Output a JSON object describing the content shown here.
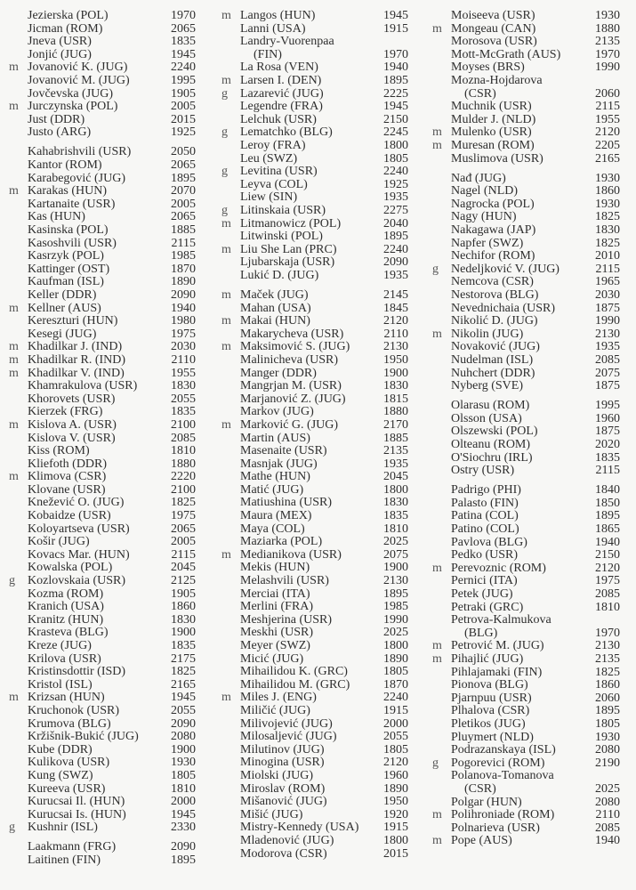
{
  "columns": [
    [
      [
        {
          "t": "",
          "n": "Jezierska (POL)",
          "r": "1970"
        },
        {
          "t": "",
          "n": "Jicman (ROM)",
          "r": "2065"
        },
        {
          "t": "",
          "n": "Jneva (USR)",
          "r": "1835"
        },
        {
          "t": "",
          "n": "Jonjić (JUG)",
          "r": "1945"
        },
        {
          "t": "m",
          "n": "Jovanović K. (JUG)",
          "r": "2240"
        },
        {
          "t": "",
          "n": "Jovanović M. (JUG)",
          "r": "1995"
        },
        {
          "t": "",
          "n": "Jovčevska (JUG)",
          "r": "1905"
        },
        {
          "t": "m",
          "n": "Jurczynska (POL)",
          "r": "2005"
        },
        {
          "t": "",
          "n": "Just (DDR)",
          "r": "2015"
        },
        {
          "t": "",
          "n": "Justo (ARG)",
          "r": "1925"
        }
      ],
      [
        {
          "t": "",
          "n": "Kahabrishvili (USR)",
          "r": "2050"
        },
        {
          "t": "",
          "n": "Kantor (ROM)",
          "r": "2065"
        },
        {
          "t": "",
          "n": "Karabegović (JUG)",
          "r": "1895"
        },
        {
          "t": "m",
          "n": "Karakas (HUN)",
          "r": "2070"
        },
        {
          "t": "",
          "n": "Kartanaite (USR)",
          "r": "2005"
        },
        {
          "t": "",
          "n": "Kas (HUN)",
          "r": "2065"
        },
        {
          "t": "",
          "n": "Kasinska (POL)",
          "r": "1885"
        },
        {
          "t": "",
          "n": "Kasoshvili (USR)",
          "r": "2115"
        },
        {
          "t": "",
          "n": "Kasrzyk (POL)",
          "r": "1985"
        },
        {
          "t": "",
          "n": "Kattinger (OST)",
          "r": "1870"
        },
        {
          "t": "",
          "n": "Kaufman (ISL)",
          "r": "1890"
        },
        {
          "t": "",
          "n": "Keller (DDR)",
          "r": "2090"
        },
        {
          "t": "m",
          "n": "Kellner (AUS)",
          "r": "1940"
        },
        {
          "t": "",
          "n": "Kereszturi (HUN)",
          "r": "1980"
        },
        {
          "t": "",
          "n": "Kesegi (JUG)",
          "r": "1975"
        },
        {
          "t": "m",
          "n": "Khadilkar J. (IND)",
          "r": "2030"
        },
        {
          "t": "m",
          "n": "Khadilkar R. (IND)",
          "r": "2110"
        },
        {
          "t": "m",
          "n": "Khadilkar V. (IND)",
          "r": "1955"
        },
        {
          "t": "",
          "n": "Khamrakulova (USR)",
          "r": "1830"
        },
        {
          "t": "",
          "n": "Khorovets (USR)",
          "r": "2055"
        },
        {
          "t": "",
          "n": "Kierzek (FRG)",
          "r": "1835"
        },
        {
          "t": "m",
          "n": "Kislova A. (USR)",
          "r": "2100"
        },
        {
          "t": "",
          "n": "Kislova V. (USR)",
          "r": "2085"
        },
        {
          "t": "",
          "n": "Kiss (ROM)",
          "r": "1810"
        },
        {
          "t": "",
          "n": "Kliefoth (DDR)",
          "r": "1880"
        },
        {
          "t": "m",
          "n": "Klimova (CSR)",
          "r": "2220"
        },
        {
          "t": "",
          "n": "Klovane (USR)",
          "r": "2100"
        },
        {
          "t": "",
          "n": "Knežević O. (JUG)",
          "r": "1825"
        },
        {
          "t": "",
          "n": "Kobaidze (USR)",
          "r": "1975"
        },
        {
          "t": "",
          "n": "Koloyartseva (USR)",
          "r": "2065"
        },
        {
          "t": "",
          "n": "Košir (JUG)",
          "r": "2005"
        },
        {
          "t": "",
          "n": "Kovacs Mar. (HUN)",
          "r": "2115"
        },
        {
          "t": "",
          "n": "Kowalska (POL)",
          "r": "2045"
        },
        {
          "t": "g",
          "n": "Kozlovskaia (USR)",
          "r": "2125"
        },
        {
          "t": "",
          "n": "Kozma (ROM)",
          "r": "1905"
        },
        {
          "t": "",
          "n": "Kranich (USA)",
          "r": "1860"
        },
        {
          "t": "",
          "n": "Kranitz (HUN)",
          "r": "1830"
        },
        {
          "t": "",
          "n": "Krasteva (BLG)",
          "r": "1900"
        },
        {
          "t": "",
          "n": "Kreze (JUG)",
          "r": "1835"
        },
        {
          "t": "",
          "n": "Krilova (USR)",
          "r": "2175"
        },
        {
          "t": "",
          "n": "Kristinsdottir (ISD)",
          "r": "1825"
        },
        {
          "t": "",
          "n": "Kristol (ISL)",
          "r": "2165"
        },
        {
          "t": "m",
          "n": "Krizsan (HUN)",
          "r": "1945"
        },
        {
          "t": "",
          "n": "Kruchonok (USR)",
          "r": "2055"
        },
        {
          "t": "",
          "n": "Krumova (BLG)",
          "r": "2090"
        },
        {
          "t": "",
          "n": "Kržišnik-Bukić (JUG)",
          "r": "2080"
        },
        {
          "t": "",
          "n": "Kube (DDR)",
          "r": "1900"
        },
        {
          "t": "",
          "n": "Kulikova (USR)",
          "r": "1930"
        },
        {
          "t": "",
          "n": "Kung (SWZ)",
          "r": "1805"
        },
        {
          "t": "",
          "n": "Kureeva (USR)",
          "r": "1810"
        },
        {
          "t": "",
          "n": "Kurucsai Il. (HUN)",
          "r": "2000"
        },
        {
          "t": "",
          "n": "Kurucsai Is. (HUN)",
          "r": "1945"
        },
        {
          "t": "g",
          "n": "Kushnir (ISL)",
          "r": "2330"
        }
      ],
      [
        {
          "t": "",
          "n": "Laakmann (FRG)",
          "r": "2090"
        },
        {
          "t": "",
          "n": "Laitinen (FIN)",
          "r": "1895"
        }
      ]
    ],
    [
      [
        {
          "t": "m",
          "n": "Langos (HUN)",
          "r": "1945"
        },
        {
          "t": "",
          "n": "Lanni (USA)",
          "r": "1915"
        },
        {
          "t": "",
          "n": "Landry-Vuorenpaa",
          "c": "(FIN)",
          "r": "1970"
        },
        {
          "t": "",
          "n": "La Rosa (VEN)",
          "r": "1940"
        },
        {
          "t": "m",
          "n": "Larsen I. (DEN)",
          "r": "1895"
        },
        {
          "t": "g",
          "n": "Lazarević (JUG)",
          "r": "2225"
        },
        {
          "t": "",
          "n": "Legendre (FRA)",
          "r": "1945"
        },
        {
          "t": "",
          "n": "Lelchuk (USR)",
          "r": "2150"
        },
        {
          "t": "g",
          "n": "Lematchko (BLG)",
          "r": "2245"
        },
        {
          "t": "",
          "n": "Leroy (FRA)",
          "r": "1800"
        },
        {
          "t": "",
          "n": "Leu (SWZ)",
          "r": "1805"
        },
        {
          "t": "g",
          "n": "Levitina (USR)",
          "r": "2240"
        },
        {
          "t": "",
          "n": "Leyva (COL)",
          "r": "1925"
        },
        {
          "t": "",
          "n": "Liew (SIN)",
          "r": "1935"
        },
        {
          "t": "g",
          "n": "Litinskaia (USR)",
          "r": "2275"
        },
        {
          "t": "m",
          "n": "Litmanowicz (POL)",
          "r": "2040"
        },
        {
          "t": "",
          "n": "Litwinski (POL)",
          "r": "1895"
        },
        {
          "t": "m",
          "n": "Liu She Lan (PRC)",
          "r": "2240"
        },
        {
          "t": "",
          "n": "Ljubarskaja (USR)",
          "r": "2090"
        },
        {
          "t": "",
          "n": "Lukić D. (JUG)",
          "r": "1935"
        }
      ],
      [
        {
          "t": "m",
          "n": "Maček (JUG)",
          "r": "2145"
        },
        {
          "t": "",
          "n": "Mahan (USA)",
          "r": "1845"
        },
        {
          "t": "m",
          "n": "Makai (HUN)",
          "r": "2120"
        },
        {
          "t": "",
          "n": "Makarycheva (USR)",
          "r": "2110"
        },
        {
          "t": "m",
          "n": "Maksimović S. (JUG)",
          "r": "2130"
        },
        {
          "t": "",
          "n": "Malinicheva (USR)",
          "r": "1950"
        },
        {
          "t": "",
          "n": "Manger (DDR)",
          "r": "1900"
        },
        {
          "t": "",
          "n": "Mangrjan M. (USR)",
          "r": "1830"
        },
        {
          "t": "",
          "n": "Marjanović Z. (JUG)",
          "r": "1815"
        },
        {
          "t": "",
          "n": "Markov (JUG)",
          "r": "1880"
        },
        {
          "t": "m",
          "n": "Marković G. (JUG)",
          "r": "2170"
        },
        {
          "t": "",
          "n": "Martin (AUS)",
          "r": "1885"
        },
        {
          "t": "",
          "n": "Masenaite (USR)",
          "r": "2135"
        },
        {
          "t": "",
          "n": "Masnjak (JUG)",
          "r": "1935"
        },
        {
          "t": "",
          "n": "Mathe (HUN)",
          "r": "2045"
        },
        {
          "t": "",
          "n": "Matić (JUG)",
          "r": "1800"
        },
        {
          "t": "",
          "n": "Matiushina (USR)",
          "r": "1830"
        },
        {
          "t": "",
          "n": "Maura (MEX)",
          "r": "1835"
        },
        {
          "t": "",
          "n": "Maya (COL)",
          "r": "1810"
        },
        {
          "t": "",
          "n": "Maziarka (POL)",
          "r": "2025"
        },
        {
          "t": "m",
          "n": "Medianikova (USR)",
          "r": "2075"
        },
        {
          "t": "",
          "n": "Mekis (HUN)",
          "r": "1900"
        },
        {
          "t": "",
          "n": "Melashvili (USR)",
          "r": "2130"
        },
        {
          "t": "",
          "n": "Merciai (ITA)",
          "r": "1895"
        },
        {
          "t": "",
          "n": "Merlini (FRA)",
          "r": "1985"
        },
        {
          "t": "",
          "n": "Meshjerina (USR)",
          "r": "1990"
        },
        {
          "t": "",
          "n": "Meskhi (USR)",
          "r": "2025"
        },
        {
          "t": "",
          "n": "Meyer (SWZ)",
          "r": "1800"
        },
        {
          "t": "",
          "n": "Micić (JUG)",
          "r": "1890"
        },
        {
          "t": "",
          "n": "Mihailidou K. (GRC)",
          "r": "1805"
        },
        {
          "t": "",
          "n": "Mihailidou M. (GRC)",
          "r": "1870"
        },
        {
          "t": "m",
          "n": "Miles J. (ENG)",
          "r": "2240"
        },
        {
          "t": "",
          "n": "Miličić (JUG)",
          "r": "1915"
        },
        {
          "t": "",
          "n": "Milivojević (JUG)",
          "r": "2000"
        },
        {
          "t": "",
          "n": "Milosaljević (JUG)",
          "r": "2055"
        },
        {
          "t": "",
          "n": "Milutinov (JUG)",
          "r": "1805"
        },
        {
          "t": "",
          "n": "Minogina (USR)",
          "r": "2120"
        },
        {
          "t": "",
          "n": "Miolski (JUG)",
          "r": "1960"
        },
        {
          "t": "",
          "n": "Miroslav (ROM)",
          "r": "1890"
        },
        {
          "t": "",
          "n": "Mišanović (JUG)",
          "r": "1950"
        },
        {
          "t": "",
          "n": "Mišić (JUG)",
          "r": "1920"
        },
        {
          "t": "",
          "n": "Mistry-Kennedy (USA)",
          "r": "1915"
        },
        {
          "t": "",
          "n": "Mladenović (JUG)",
          "r": "1800"
        },
        {
          "t": "",
          "n": "Modorova (CSR)",
          "r": "2015"
        }
      ]
    ],
    [
      [
        {
          "t": "",
          "n": "Moiseeva (USR)",
          "r": "1930"
        },
        {
          "t": "m",
          "n": "Mongeau (CAN)",
          "r": "1880"
        },
        {
          "t": "",
          "n": "Morosova (USR)",
          "r": "2135"
        },
        {
          "t": "",
          "n": "Mott-McGrath (AUS)",
          "r": "1970"
        },
        {
          "t": "",
          "n": "Moyses (BRS)",
          "r": "1990"
        },
        {
          "t": "",
          "n": "Mozna-Hojdarova",
          "c": "(CSR)",
          "r": "2060"
        },
        {
          "t": "",
          "n": "Muchnik (USR)",
          "r": "2115"
        },
        {
          "t": "",
          "n": "Mulder J. (NLD)",
          "r": "1955"
        },
        {
          "t": "m",
          "n": "Mulenko (USR)",
          "r": "2120"
        },
        {
          "t": "m",
          "n": "Muresan (ROM)",
          "r": "2205"
        },
        {
          "t": "",
          "n": "Muslimova (USR)",
          "r": "2165"
        }
      ],
      [
        {
          "t": "",
          "n": "Nađ (JUG)",
          "r": "1930"
        },
        {
          "t": "",
          "n": "Nagel (NLD)",
          "r": "1860"
        },
        {
          "t": "",
          "n": "Nagrocka (POL)",
          "r": "1930"
        },
        {
          "t": "",
          "n": "Nagy (HUN)",
          "r": "1825"
        },
        {
          "t": "",
          "n": "Nakagawa (JAP)",
          "r": "1830"
        },
        {
          "t": "",
          "n": "Napfer (SWZ)",
          "r": "1825"
        },
        {
          "t": "",
          "n": "Nechifor (ROM)",
          "r": "2010"
        },
        {
          "t": "g",
          "n": "Nedeljković V. (JUG)",
          "r": "2115"
        },
        {
          "t": "",
          "n": "Nemcova (CSR)",
          "r": "1965"
        },
        {
          "t": "",
          "n": "Nestorova (BLG)",
          "r": "2030"
        },
        {
          "t": "",
          "n": "Nevednichaia (USR)",
          "r": "1875"
        },
        {
          "t": "",
          "n": "Nikolić D. (JUG)",
          "r": "1990"
        },
        {
          "t": "m",
          "n": "Nikolin (JUG)",
          "r": "2130"
        },
        {
          "t": "",
          "n": "Novaković (JUG)",
          "r": "1935"
        },
        {
          "t": "",
          "n": "Nudelman (ISL)",
          "r": "2085"
        },
        {
          "t": "",
          "n": "Nuhchert (DDR)",
          "r": "2075"
        },
        {
          "t": "",
          "n": "Nyberg (SVE)",
          "r": "1875"
        }
      ],
      [
        {
          "t": "",
          "n": "Olarasu (ROM)",
          "r": "1995"
        },
        {
          "t": "",
          "n": "Olsson (USA)",
          "r": "1960"
        },
        {
          "t": "",
          "n": "Olszewski (POL)",
          "r": "1875"
        },
        {
          "t": "",
          "n": "Olteanu (ROM)",
          "r": "2020"
        },
        {
          "t": "",
          "n": "O'Siochru (IRL)",
          "r": "1835"
        },
        {
          "t": "",
          "n": "Ostry (USR)",
          "r": "2115"
        }
      ],
      [
        {
          "t": "",
          "n": "Padrigo (PHI)",
          "r": "1840"
        },
        {
          "t": "",
          "n": "Palasto (FIN)",
          "r": "1850"
        },
        {
          "t": "",
          "n": "Patina (COL)",
          "r": "1895"
        },
        {
          "t": "",
          "n": "Patino (COL)",
          "r": "1865"
        },
        {
          "t": "",
          "n": "Pavlova (BLG)",
          "r": "1940"
        },
        {
          "t": "",
          "n": "Pedko (USR)",
          "r": "2150"
        },
        {
          "t": "m",
          "n": "Perevoznic (ROM)",
          "r": "2120"
        },
        {
          "t": "",
          "n": "Pernici (ITA)",
          "r": "1975"
        },
        {
          "t": "",
          "n": "Petek (JUG)",
          "r": "2085"
        },
        {
          "t": "",
          "n": "Petraki (GRC)",
          "r": "1810"
        },
        {
          "t": "",
          "n": "Petrova-Kalmukova",
          "c": "(BLG)",
          "r": "1970"
        },
        {
          "t": "m",
          "n": "Petrović M. (JUG)",
          "r": "2130"
        },
        {
          "t": "m",
          "n": "Pihajlić (JUG)",
          "r": "2135"
        },
        {
          "t": "",
          "n": "Pihlajamaki (FIN)",
          "r": "1825"
        },
        {
          "t": "",
          "n": "Pionova (BLG)",
          "r": "1860"
        },
        {
          "t": "",
          "n": "Pjarnpuu (USR)",
          "r": "2060"
        },
        {
          "t": "",
          "n": "Plhalova (CSR)",
          "r": "1895"
        },
        {
          "t": "",
          "n": "Pletikos (JUG)",
          "r": "1805"
        },
        {
          "t": "",
          "n": "Pluymert (NLD)",
          "r": "1930"
        },
        {
          "t": "",
          "n": "Podrazanskaya (ISL)",
          "r": "2080"
        },
        {
          "t": "g",
          "n": "Pogorevici (ROM)",
          "r": "2190"
        },
        {
          "t": "",
          "n": "Polanova-Tomanova",
          "c": "(CSR)",
          "r": "2025"
        },
        {
          "t": "",
          "n": "Polgar (HUN)",
          "r": "2080"
        },
        {
          "t": "m",
          "n": "Polihroniade (ROM)",
          "r": "2110"
        },
        {
          "t": "",
          "n": "Polnarieva (USR)",
          "r": "2085"
        },
        {
          "t": "m",
          "n": "Pope (AUS)",
          "r": "1940"
        }
      ]
    ]
  ]
}
